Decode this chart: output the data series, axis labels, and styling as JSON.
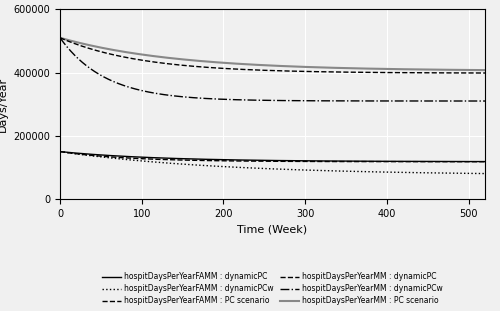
{
  "xlim": [
    0,
    520
  ],
  "ylim": [
    0,
    600000
  ],
  "xlabel": "Time (Week)",
  "ylabel": "Days/Year",
  "xticks": [
    0,
    100,
    200,
    300,
    400,
    500
  ],
  "yticks": [
    0,
    200000,
    400000,
    600000
  ],
  "figsize": [
    5.0,
    3.11
  ],
  "dpi": 100,
  "bg_color": "#f0f0f0",
  "grid_color": "#ffffff",
  "legend_entries": [
    {
      "label": "hospitDaysPerYearFAMM : dynamicPC",
      "linestyle": "solid",
      "color": "#000000",
      "lw": 1.0
    },
    {
      "label": "hospitDaysPerYearFAMM : dynamicPCw",
      "linestyle": "dotted",
      "color": "#000000",
      "lw": 1.0
    },
    {
      "label": "hospitDaysPerYearFAMM : PC scenario",
      "linestyle": "dashed",
      "color": "#000000",
      "lw": 1.0
    },
    {
      "label": "hospitDaysPerYearMM : dynamicPC",
      "linestyle": "dashed",
      "color": "#000000",
      "lw": 1.0
    },
    {
      "label": "hospitDaysPerYearMM : dynamicPCw",
      "linestyle": "dashdot",
      "color": "#000000",
      "lw": 1.0
    },
    {
      "label": "hospitDaysPerYearMM : PC scenario",
      "linestyle": "solid",
      "color": "#888888",
      "lw": 1.5
    }
  ]
}
